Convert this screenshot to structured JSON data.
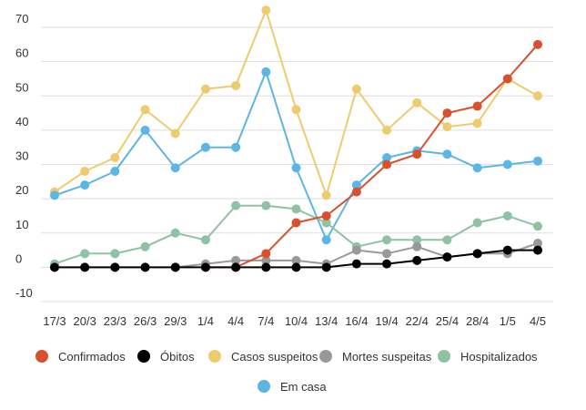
{
  "chart_data": {
    "type": "line",
    "title": "",
    "xlabel": "",
    "ylabel": "",
    "ylim": [
      -10,
      70
    ],
    "yticks": [
      -10,
      0,
      10,
      20,
      30,
      40,
      50,
      60,
      70
    ],
    "grid": true,
    "legend_position": "bottom",
    "categories": [
      "17/3",
      "20/3",
      "23/3",
      "26/3",
      "29/3",
      "1/4",
      "4/4",
      "7/4",
      "10/4",
      "13/4",
      "16/4",
      "19/4",
      "22/4",
      "25/4",
      "28/4",
      "1/5",
      "4/5"
    ],
    "series": [
      {
        "name": "Confirmados",
        "color": "#d9512c",
        "values": [
          null,
          null,
          null,
          null,
          null,
          0,
          0,
          4,
          13,
          15,
          22,
          30,
          33,
          45,
          47,
          55,
          65
        ]
      },
      {
        "name": "Óbitos",
        "color": "#000000",
        "values": [
          0,
          0,
          0,
          0,
          0,
          0,
          0,
          0,
          0,
          0,
          1,
          1,
          2,
          3,
          4,
          5,
          5
        ]
      },
      {
        "name": "Casos suspeitos",
        "color": "#eecb6f",
        "values": [
          22,
          28,
          32,
          46,
          39,
          52,
          53,
          75,
          46,
          21,
          52,
          40,
          48,
          41,
          42,
          55,
          50
        ]
      },
      {
        "name": "Mortes suspeitas",
        "color": "#999999",
        "values": [
          0,
          0,
          0,
          0,
          0,
          1,
          2,
          2,
          2,
          1,
          5,
          4,
          6,
          3,
          4,
          4,
          7
        ]
      },
      {
        "name": "Hospitalizados",
        "color": "#8fc1a3",
        "values": [
          1,
          4,
          4,
          6,
          10,
          8,
          18,
          18,
          17,
          13,
          6,
          8,
          8,
          8,
          13,
          15,
          12
        ]
      },
      {
        "name": "Em casa",
        "color": "#5bb6e4",
        "values": [
          21,
          24,
          28,
          40,
          29,
          35,
          35,
          57,
          29,
          8,
          24,
          32,
          34,
          33,
          29,
          30,
          31
        ]
      }
    ],
    "draw_order": [
      "Casos suspeitos",
      "Em casa",
      "Hospitalizados",
      "Mortes suspeitas",
      "Confirmados",
      "Óbitos"
    ]
  }
}
